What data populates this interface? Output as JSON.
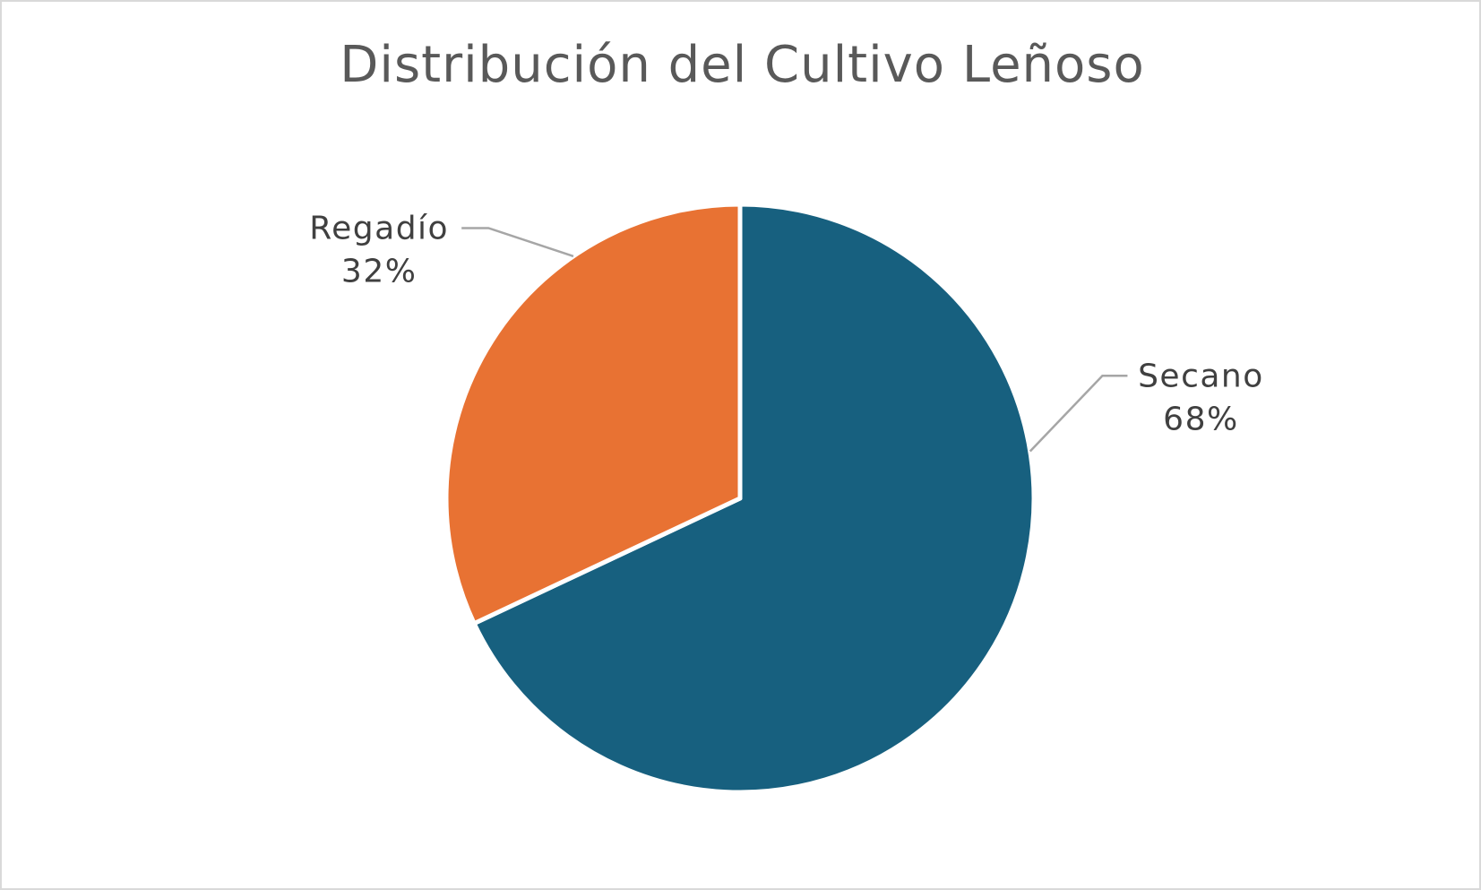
{
  "chart_data": {
    "type": "pie",
    "title": "Distribución del Cultivo Leñoso",
    "slices": [
      {
        "label": "Secano",
        "value": 68,
        "value_label": "68%",
        "color": "#17607f"
      },
      {
        "label": "Regadío",
        "value": 32,
        "value_label": "32%",
        "color": "#e87233"
      }
    ],
    "start_angle_deg": 0,
    "direction": "clockwise",
    "slice_border_color": "#ffffff",
    "leader_line_color": "#a6a6a6",
    "legend": "none",
    "data_labels": "outside with leader lines"
  }
}
